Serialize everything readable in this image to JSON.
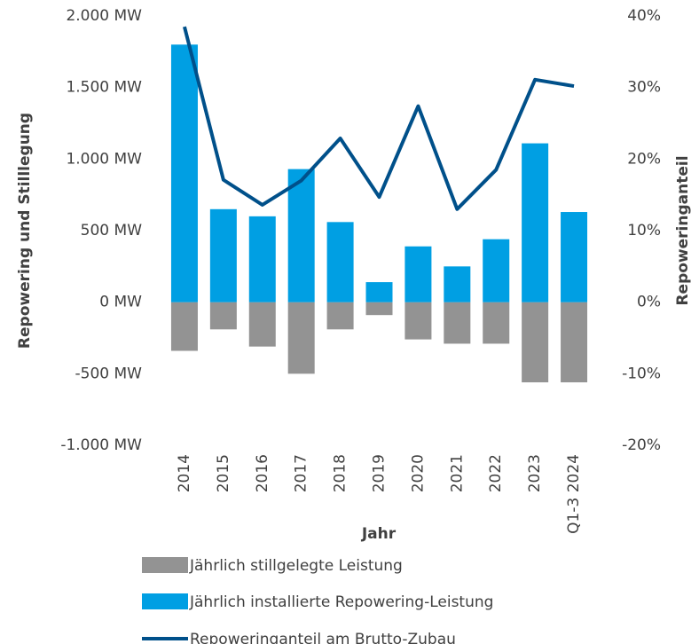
{
  "chart_data": {
    "type": "bar_line",
    "x_label": "Jahr",
    "y_label": "Repowering und Stilllegung",
    "y2_label": "Repoweringanteil",
    "categories": [
      "2014",
      "2015",
      "2016",
      "2017",
      "2018",
      "2019",
      "2020",
      "2021",
      "2022",
      "2023",
      "Q1-3 2024"
    ],
    "series": [
      {
        "name": "Jährlich stillgelegte Leistung",
        "color": "#939393",
        "type": "bar",
        "values": [
          -340,
          -190,
          -310,
          -500,
          -190,
          -90,
          -260,
          -290,
          -290,
          -560,
          -560
        ]
      },
      {
        "name": "Jährlich installierte Repowering-Leistung",
        "color": "#009fe3",
        "type": "bar",
        "values": [
          1800,
          650,
          600,
          930,
          560,
          140,
          390,
          250,
          440,
          1110,
          630
        ]
      },
      {
        "name": "Repoweringanteil am Brutto-Zubau",
        "color": "#00508a",
        "type": "line",
        "axis": "y2",
        "values": [
          38.5,
          17.1,
          13.6,
          17.0,
          22.9,
          14.7,
          27.4,
          13.0,
          18.5,
          31.1,
          30.2
        ]
      }
    ],
    "ylim": [
      -1000,
      2000
    ],
    "yticks": [
      {
        "value": -1000,
        "label": "-1.000 MW"
      },
      {
        "value": -500,
        "label": "-500 MW"
      },
      {
        "value": 0,
        "label": "0 MW"
      },
      {
        "value": 500,
        "label": "500 MW"
      },
      {
        "value": 1000,
        "label": "1.000 MW"
      },
      {
        "value": 1500,
        "label": "1.500 MW"
      },
      {
        "value": 2000,
        "label": "2.000 MW"
      }
    ],
    "y2lim": [
      -20,
      40
    ],
    "y2ticks": [
      {
        "value": -20,
        "label": "-20%"
      },
      {
        "value": -10,
        "label": "-10%"
      },
      {
        "value": 0,
        "label": "0%"
      },
      {
        "value": 10,
        "label": "10%"
      },
      {
        "value": 20,
        "label": "20%"
      },
      {
        "value": 30,
        "label": "30%"
      },
      {
        "value": 40,
        "label": "40%"
      }
    ],
    "grid": false
  }
}
